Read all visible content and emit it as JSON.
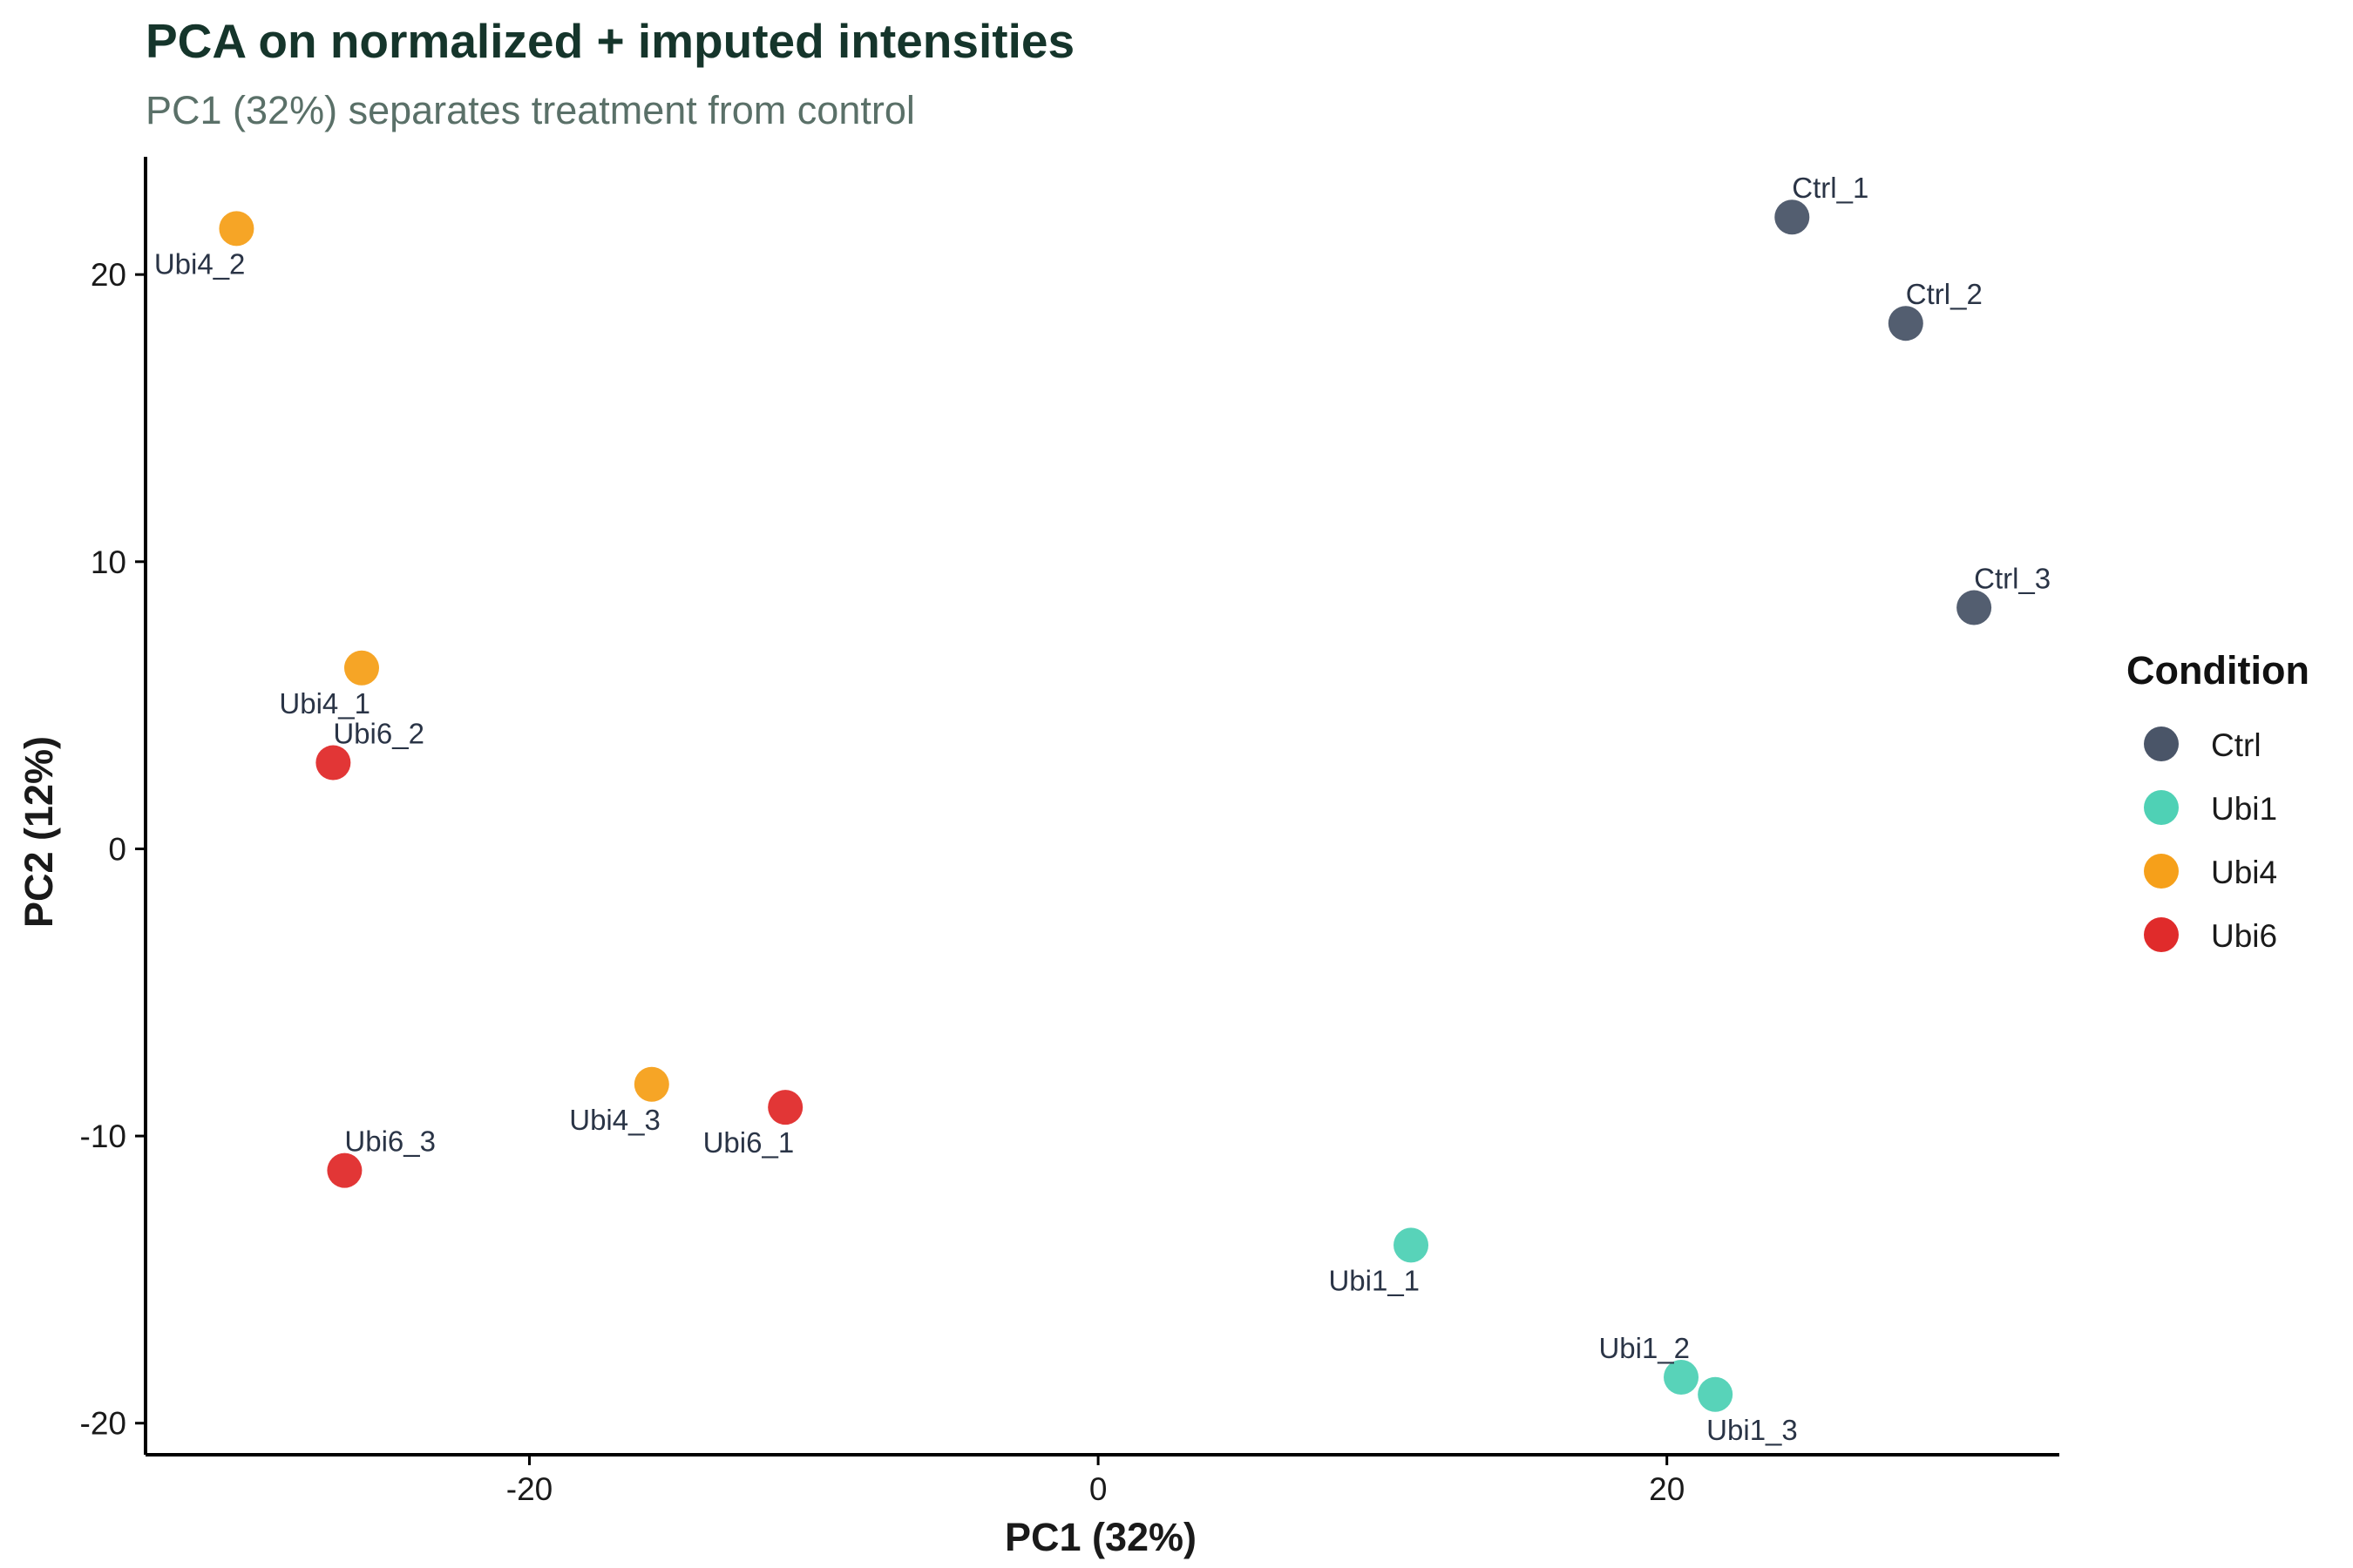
{
  "chart_data": {
    "type": "scatter",
    "title": "PCA on normalized + imputed intensities",
    "subtitle": "PC1 (32%) separates treatment from control",
    "xlabel": "PC1 (32%)",
    "ylabel": "PC2 (12%)",
    "xlim": [
      -33.5,
      33.8
    ],
    "ylim": [
      -21.1,
      24.1
    ],
    "xticks": [
      -20,
      0,
      20
    ],
    "xtick_labels": [
      "-20",
      "0",
      "20"
    ],
    "yticks": [
      -20,
      -10,
      0,
      10,
      20
    ],
    "ytick_labels": [
      "-20",
      "-10",
      "0",
      "10",
      "20"
    ],
    "grid": false,
    "legend": {
      "title": "Condition",
      "position": "right",
      "entries": [
        {
          "name": "Ctrl",
          "color": "#4a5568"
        },
        {
          "name": "Ubi1",
          "color": "#4fd1b5"
        },
        {
          "name": "Ubi4",
          "color": "#f6a01a"
        },
        {
          "name": "Ubi6",
          "color": "#e02b2b"
        }
      ]
    },
    "points": [
      {
        "label": "Ctrl_1",
        "group": "Ctrl",
        "x": 24.4,
        "y": 22.0,
        "label_pos": "above-right"
      },
      {
        "label": "Ctrl_2",
        "group": "Ctrl",
        "x": 28.4,
        "y": 18.3,
        "label_pos": "above-right"
      },
      {
        "label": "Ctrl_3",
        "group": "Ctrl",
        "x": 30.8,
        "y": 8.4,
        "label_pos": "above-right"
      },
      {
        "label": "Ubi1_1",
        "group": "Ubi1",
        "x": 11.0,
        "y": -13.8,
        "label_pos": "below-left"
      },
      {
        "label": "Ubi1_2",
        "group": "Ubi1",
        "x": 20.5,
        "y": -18.4,
        "label_pos": "above-left"
      },
      {
        "label": "Ubi1_3",
        "group": "Ubi1",
        "x": 21.7,
        "y": -19.0,
        "label_pos": "below-right"
      },
      {
        "label": "Ubi4_1",
        "group": "Ubi4",
        "x": -25.9,
        "y": 6.3,
        "label_pos": "below-left"
      },
      {
        "label": "Ubi4_2",
        "group": "Ubi4",
        "x": -30.3,
        "y": 21.6,
        "label_pos": "below-left"
      },
      {
        "label": "Ubi4_3",
        "group": "Ubi4",
        "x": -15.7,
        "y": -8.2,
        "label_pos": "below-left"
      },
      {
        "label": "Ubi6_1",
        "group": "Ubi6",
        "x": -11.0,
        "y": -9.0,
        "label_pos": "below-left"
      },
      {
        "label": "Ubi6_2",
        "group": "Ubi6",
        "x": -26.9,
        "y": 3.0,
        "label_pos": "above-right"
      },
      {
        "label": "Ubi6_3",
        "group": "Ubi6",
        "x": -26.5,
        "y": -11.2,
        "label_pos": "above-right"
      }
    ]
  }
}
